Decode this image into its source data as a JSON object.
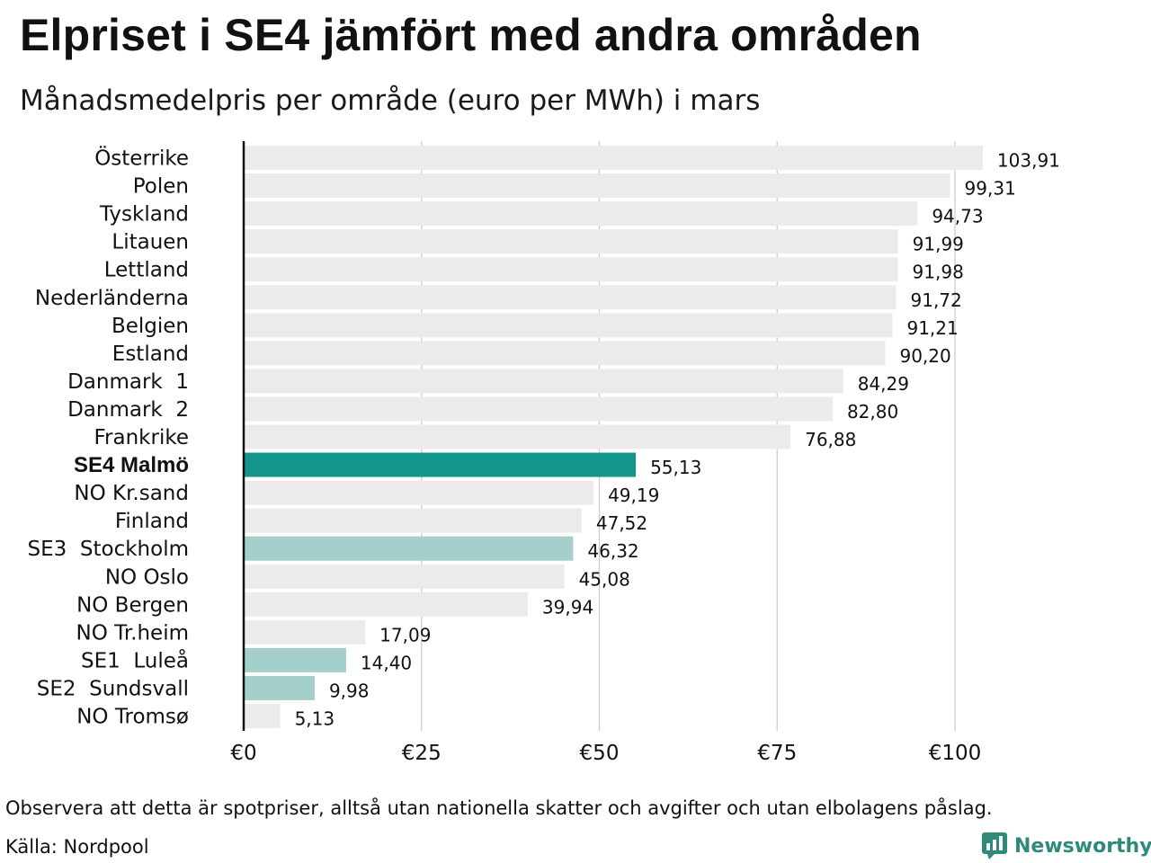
{
  "title": "Elpriset i SE4 jämfört med andra områden",
  "subtitle": "Månadsmedelpris per område (euro per MWh) i mars",
  "footer": {
    "note": "Observera att detta är spotpriser, alltså utan nationella skatter och avgifter och utan elbolagens påslag.",
    "source": "Källa: Nordpool"
  },
  "brand": {
    "name": "Newsworthy",
    "icon": "newsworthy-logo-icon",
    "color": "#2e8b7a"
  },
  "colors": {
    "default_bar": "#ebebeb",
    "highlight_bar": "#12958a",
    "secondary_bar": "#a5cfca",
    "axis_line": "#111111",
    "grid_line": "#cccccc"
  },
  "chart_data": {
    "type": "bar",
    "orientation": "horizontal",
    "categories": [
      "Österrike",
      "Polen",
      "Tyskland",
      "Litauen",
      "Lettland",
      "Nederländerna",
      "Belgien",
      "Estland",
      "Danmark  1",
      "Danmark  2",
      "Frankrike",
      "SE4 Malmö",
      "NO Kr.sand",
      "Finland",
      "SE3  Stockholm",
      "NO Oslo",
      "NO Bergen",
      "NO Tr.heim",
      "SE1  Luleå",
      "SE2  Sundsvall",
      "NO Tromsø"
    ],
    "values": [
      103.91,
      99.31,
      94.73,
      91.99,
      91.98,
      91.72,
      91.21,
      90.2,
      84.29,
      82.8,
      76.88,
      55.13,
      49.19,
      47.52,
      46.32,
      45.08,
      39.94,
      17.09,
      14.4,
      9.98,
      5.13
    ],
    "value_labels": [
      "103,91",
      "99,31",
      "94,73",
      "91,99",
      "91,98",
      "91,72",
      "91,21",
      "90,20",
      "84,29",
      "82,80",
      "76,88",
      "55,13",
      "49,19",
      "47,52",
      "46,32",
      "45,08",
      "39,94",
      "17,09",
      "14,40",
      "9,98",
      "5,13"
    ],
    "highlight": [
      "default",
      "default",
      "default",
      "default",
      "default",
      "default",
      "default",
      "default",
      "default",
      "default",
      "default",
      "primary",
      "default",
      "default",
      "secondary",
      "default",
      "default",
      "default",
      "secondary",
      "secondary",
      "default"
    ],
    "xlim": [
      0,
      105
    ],
    "x_ticks": [
      0,
      25,
      50,
      75,
      100
    ],
    "x_tick_labels": [
      "€0",
      "€25",
      "€50",
      "€75",
      "€100"
    ],
    "grid": true,
    "legend": "none"
  }
}
